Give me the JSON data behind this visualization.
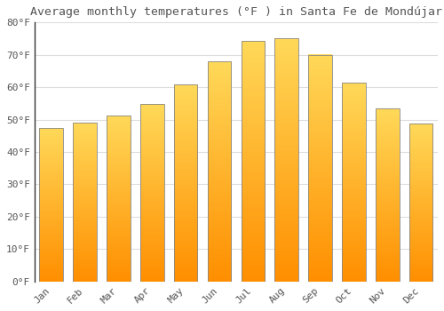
{
  "title": "Average monthly temperatures (°F ) in Santa Fe de Mondújar",
  "months": [
    "Jan",
    "Feb",
    "Mar",
    "Apr",
    "May",
    "Jun",
    "Jul",
    "Aug",
    "Sep",
    "Oct",
    "Nov",
    "Dec"
  ],
  "values": [
    47.3,
    49.1,
    51.3,
    54.7,
    60.8,
    68.0,
    74.3,
    75.0,
    70.0,
    61.3,
    53.4,
    48.7
  ],
  "bar_color_top": "#FFD54F",
  "bar_color_bottom": "#FF8F00",
  "bar_edge_color": "#555555",
  "background_color": "#FFFFFF",
  "grid_color": "#DDDDDD",
  "text_color": "#555555",
  "ylim": [
    0,
    80
  ],
  "yticks": [
    0,
    10,
    20,
    30,
    40,
    50,
    60,
    70,
    80
  ],
  "ytick_labels": [
    "0°F",
    "10°F",
    "20°F",
    "30°F",
    "40°F",
    "50°F",
    "60°F",
    "70°F",
    "80°F"
  ],
  "title_fontsize": 9.5,
  "tick_fontsize": 8,
  "font_family": "monospace"
}
